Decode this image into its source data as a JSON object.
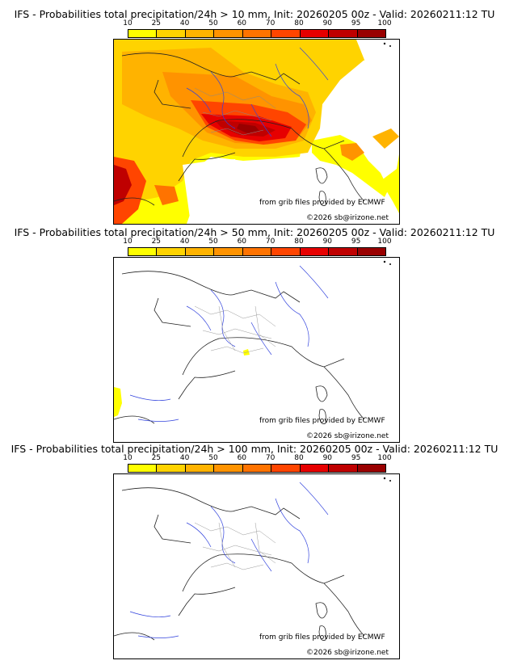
{
  "legend": {
    "ticks": [
      "10",
      "25",
      "40",
      "50",
      "60",
      "70",
      "80",
      "90",
      "95",
      "100"
    ],
    "colors": [
      "#ffff00",
      "#ffd300",
      "#ffb300",
      "#ff9300",
      "#ff7300",
      "#ff4500",
      "#e60000",
      "#bf0000",
      "#990000",
      "#660000"
    ]
  },
  "panels": [
    {
      "title": "IFS - Probabilities total precipitation/24h > 10 mm, Init: 20260205 00z - Valid: 20260211:12 TU"
    },
    {
      "title": "IFS - Probabilities total precipitation/24h > 50 mm, Init: 20260205 00z - Valid: 20260211:12 TU"
    },
    {
      "title": "IFS - Probabilities total precipitation/24h > 100 mm, Init: 20260205 00z - Valid: 20260211:12 TU"
    }
  ],
  "credit": {
    "source": "from grib files provided by ECMWF",
    "copyright": "©2026 sb@irizone.net"
  }
}
